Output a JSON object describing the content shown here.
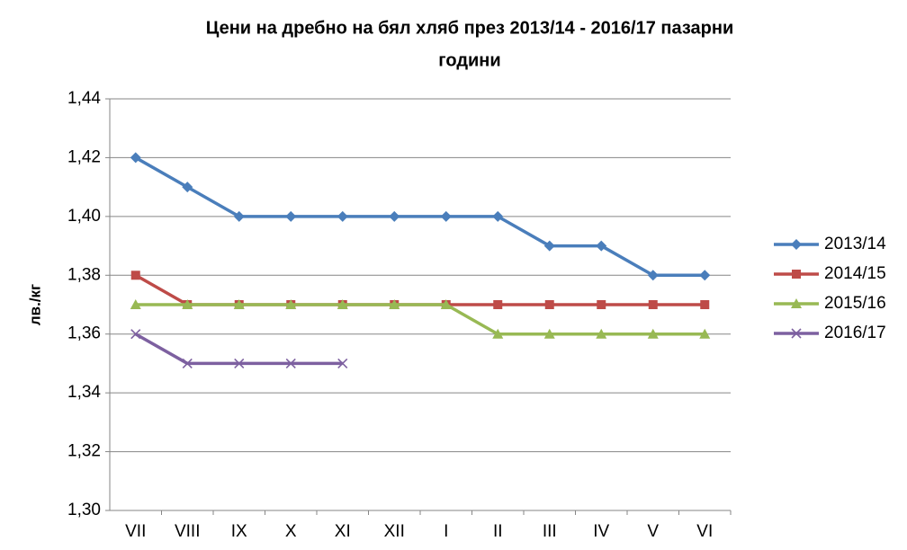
{
  "chart_data": {
    "type": "line",
    "title": [
      "Цени на дребно на бял хляб през 2013/14  - 2016/17  пазарни",
      "години"
    ],
    "y_label": "лв./кг",
    "categories": [
      "VII",
      "VIII",
      "IX",
      "X",
      "XI",
      "XII",
      "I",
      "II",
      "III",
      "IV",
      "V",
      "VI"
    ],
    "series": [
      {
        "name": "2013/14",
        "color": "#4a7ebb",
        "marker": "diamond",
        "values": [
          1.42,
          1.41,
          1.4,
          1.4,
          1.4,
          1.4,
          1.4,
          1.4,
          1.39,
          1.39,
          1.38,
          1.38
        ]
      },
      {
        "name": "2014/15",
        "color": "#be4b48",
        "marker": "square",
        "values": [
          1.38,
          1.37,
          1.37,
          1.37,
          1.37,
          1.37,
          1.37,
          1.37,
          1.37,
          1.37,
          1.37,
          1.37
        ]
      },
      {
        "name": "2015/16",
        "color": "#98b954",
        "marker": "triangle",
        "values": [
          1.37,
          1.37,
          1.37,
          1.37,
          1.37,
          1.37,
          1.37,
          1.36,
          1.36,
          1.36,
          1.36,
          1.36
        ]
      },
      {
        "name": "2016/17",
        "color": "#7d60a0",
        "marker": "x",
        "values": [
          1.36,
          1.35,
          1.35,
          1.35,
          1.35,
          null,
          null,
          null,
          null,
          null,
          null,
          null
        ]
      }
    ],
    "ylim": [
      1.3,
      1.44
    ],
    "yticks": [
      {
        "value": 1.3,
        "label": "1,30"
      },
      {
        "value": 1.32,
        "label": "1,32"
      },
      {
        "value": 1.34,
        "label": "1,34"
      },
      {
        "value": 1.36,
        "label": "1,36"
      },
      {
        "value": 1.38,
        "label": "1,38"
      },
      {
        "value": 1.4,
        "label": "1,40"
      },
      {
        "value": 1.42,
        "label": "1,42"
      },
      {
        "value": 1.44,
        "label": "1,44"
      }
    ],
    "grid": true,
    "legend": "right"
  }
}
